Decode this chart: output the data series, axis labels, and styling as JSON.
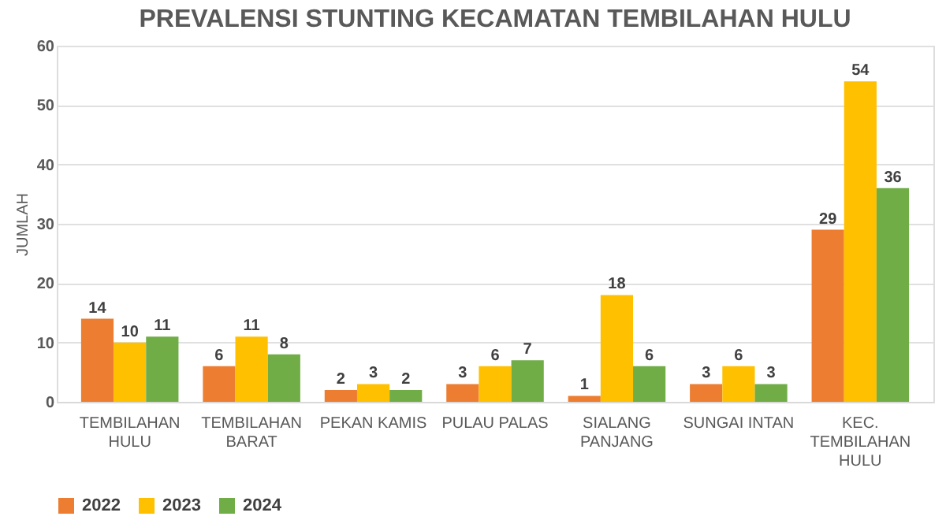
{
  "chart_data": {
    "type": "bar",
    "title": "PREVALENSI STUNTING KECAMATAN TEMBILAHAN HULU",
    "ylabel": "JUMLAH",
    "categories": [
      "TEMBILAHAN HULU",
      "TEMBILAHAN BARAT",
      "PEKAN KAMIS",
      "PULAU PALAS",
      "SIALANG PANJANG",
      "SUNGAI INTAN",
      "KEC. TEMBILAHAN HULU"
    ],
    "series": [
      {
        "name": "2022",
        "color": "#ed7d31",
        "values": [
          14,
          6,
          2,
          3,
          1,
          3,
          29
        ]
      },
      {
        "name": "2023",
        "color": "#ffc000",
        "values": [
          10,
          11,
          3,
          6,
          18,
          6,
          54
        ]
      },
      {
        "name": "2024",
        "color": "#70ad47",
        "values": [
          11,
          8,
          2,
          7,
          6,
          3,
          36
        ]
      }
    ],
    "ylim": [
      0,
      60
    ],
    "yticks": [
      0,
      10,
      20,
      30,
      40,
      50,
      60
    ],
    "grid": "y",
    "legend": "bottom",
    "data_labels": true
  }
}
